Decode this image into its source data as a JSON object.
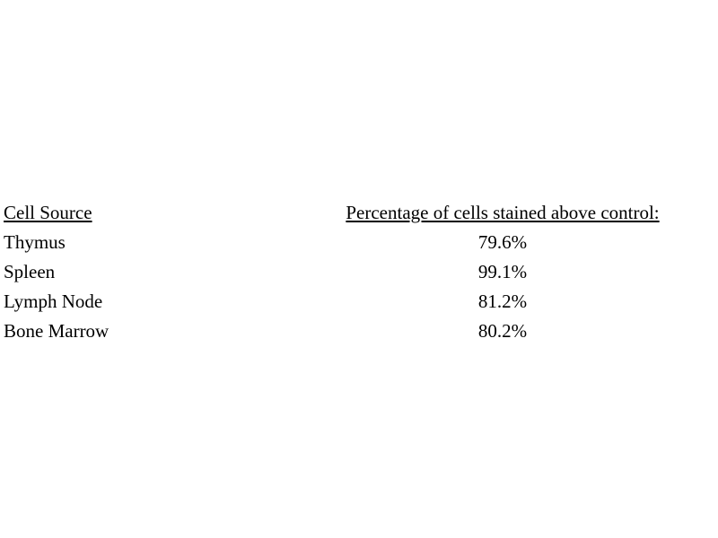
{
  "table": {
    "columns": [
      {
        "label": "Cell Source"
      },
      {
        "label": "Percentage of cells stained above control:"
      }
    ],
    "rows": [
      {
        "cell_source": "Thymus",
        "percentage": "79.6%"
      },
      {
        "cell_source": "Spleen",
        "percentage": "99.1%"
      },
      {
        "cell_source": "Lymph Node",
        "percentage": "81.2%"
      },
      {
        "cell_source": "Bone Marrow",
        "percentage": "80.2%"
      }
    ]
  },
  "colors": {
    "background": "#ffffff",
    "text": "#000000"
  }
}
